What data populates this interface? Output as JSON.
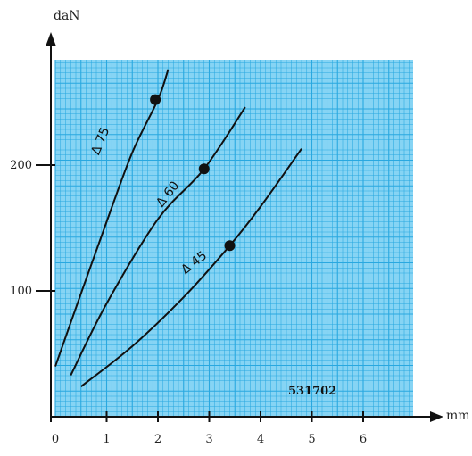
{
  "chart_data": {
    "type": "line",
    "xlabel": "mm",
    "ylabel": "daN",
    "xlim": [
      0,
      7.1
    ],
    "ylim": [
      0,
      283
    ],
    "grid": true,
    "grid_color": "#29a8e0",
    "line_color": "#111111",
    "x_ticks": [
      "0",
      "1",
      "2",
      "3",
      "4",
      "5",
      "6"
    ],
    "y_ticks": [
      "100",
      "200"
    ],
    "annotation": "531702",
    "series": [
      {
        "name": "Δ 75",
        "x": [
          0.0,
          0.5,
          1.0,
          1.5,
          2.0,
          2.2
        ],
        "y": [
          40,
          98,
          155,
          210,
          252,
          276
        ],
        "marker": {
          "x": 1.95,
          "y": 252
        }
      },
      {
        "name": "Δ 60",
        "x": [
          0.3,
          1.0,
          2.0,
          2.9,
          3.7
        ],
        "y": [
          33,
          90,
          157,
          197,
          246
        ],
        "marker": {
          "x": 2.9,
          "y": 197
        }
      },
      {
        "name": "Δ 45",
        "x": [
          0.5,
          1.5,
          2.5,
          3.4,
          4.0,
          4.8
        ],
        "y": [
          24,
          56,
          95,
          136,
          167,
          213
        ],
        "marker": {
          "x": 3.4,
          "y": 136
        }
      }
    ]
  }
}
